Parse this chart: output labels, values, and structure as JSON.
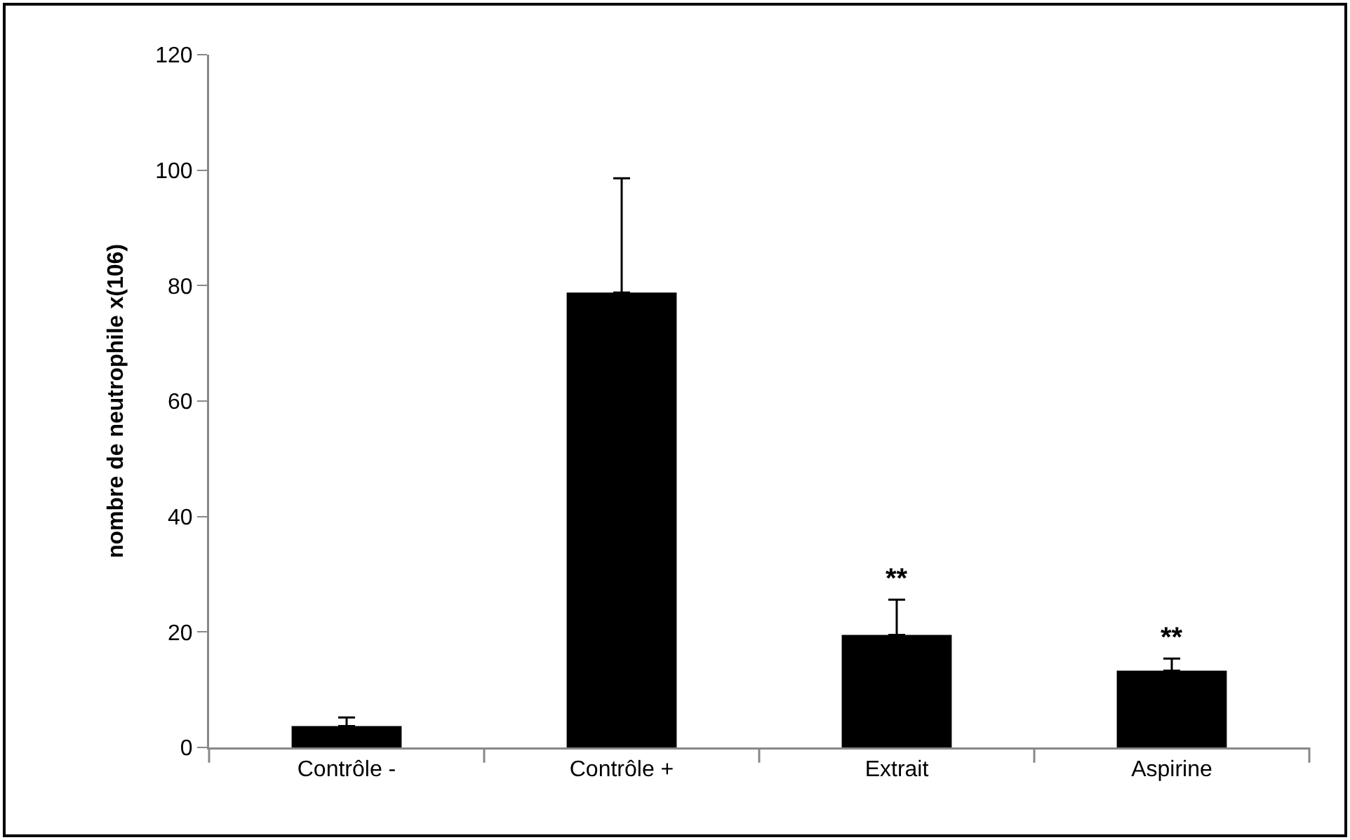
{
  "chart_data": {
    "type": "bar",
    "ylabel": "nombre de neutrophile x(106)",
    "categories": [
      "Contrôle -",
      "Contrôle +",
      "Extrait",
      "Aspirine"
    ],
    "values": [
      3.7,
      78.8,
      19.5,
      13.3
    ],
    "errors": [
      [
        3.7,
        5.2
      ],
      [
        78.8,
        98.6
      ],
      [
        19.5,
        25.6
      ],
      [
        13.3,
        15.4
      ]
    ],
    "color": "#000000",
    "ylim": [
      0,
      120
    ],
    "yticks": [
      0,
      20,
      40,
      60,
      80,
      100,
      120
    ],
    "grid": false,
    "annotations": [
      {
        "text": "**",
        "x": "Extrait",
        "y": 25.6
      },
      {
        "text": "**",
        "x": "Aspirine",
        "y": 15.4
      }
    ]
  }
}
